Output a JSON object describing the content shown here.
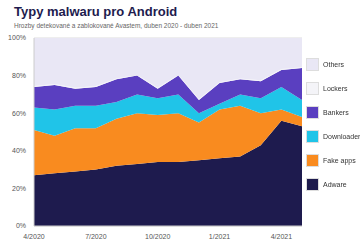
{
  "chart_data": {
    "type": "area",
    "title": "Typy malwaru pro Android",
    "subtitle": "Hrozby detekované a zablokované Avastem, duben 2020 - duben 2021",
    "categories": [
      "4/2020",
      null,
      null,
      "7/2020",
      null,
      null,
      "10/2020",
      null,
      null,
      "1/2021",
      null,
      null,
      "4/2021",
      null
    ],
    "series": [
      {
        "name": "Adware",
        "color": "#1e1b4e",
        "values": [
          27,
          28,
          29,
          30,
          32,
          33,
          34,
          34,
          35,
          36,
          37,
          43,
          56,
          53
        ]
      },
      {
        "name": "Fake apps",
        "color": "#f98b1f",
        "values": [
          24,
          20,
          23,
          22,
          25,
          27,
          25,
          26,
          20,
          26,
          27,
          17,
          6,
          5
        ]
      },
      {
        "name": "Downloaders",
        "color": "#20c4e8",
        "values": [
          12,
          14,
          12,
          12,
          9,
          10,
          9,
          10,
          5,
          3,
          6,
          8,
          12,
          9
        ]
      },
      {
        "name": "Bankers",
        "color": "#5a3fc0",
        "values": [
          11,
          13,
          9,
          10,
          12,
          10,
          5,
          10,
          7,
          11,
          8,
          9,
          9,
          17
        ]
      },
      {
        "name": "Lockers",
        "color": "#f4f4f8",
        "values": [
          0.5,
          0.5,
          0.5,
          0.5,
          0.5,
          0.5,
          0.5,
          0.5,
          0.5,
          0.5,
          0.5,
          0.5,
          0.5,
          0.5
        ]
      },
      {
        "name": "Others",
        "color": "#e9e7f5",
        "values": [
          25.5,
          24.5,
          26.5,
          25.5,
          21.5,
          19.5,
          26.5,
          19.5,
          32.5,
          23.5,
          21.5,
          22.5,
          16.5,
          15.5
        ]
      }
    ],
    "ylim": [
      0,
      100
    ],
    "yticks": [
      {
        "value": 0,
        "label": "0%"
      },
      {
        "value": 20,
        "label": "20%"
      },
      {
        "value": 40,
        "label": "40%"
      },
      {
        "value": 60,
        "label": "60%"
      },
      {
        "value": 80,
        "label": "80%"
      },
      {
        "value": 100,
        "label": "100%"
      }
    ],
    "grid": true,
    "stacked": true,
    "legend": "right"
  }
}
